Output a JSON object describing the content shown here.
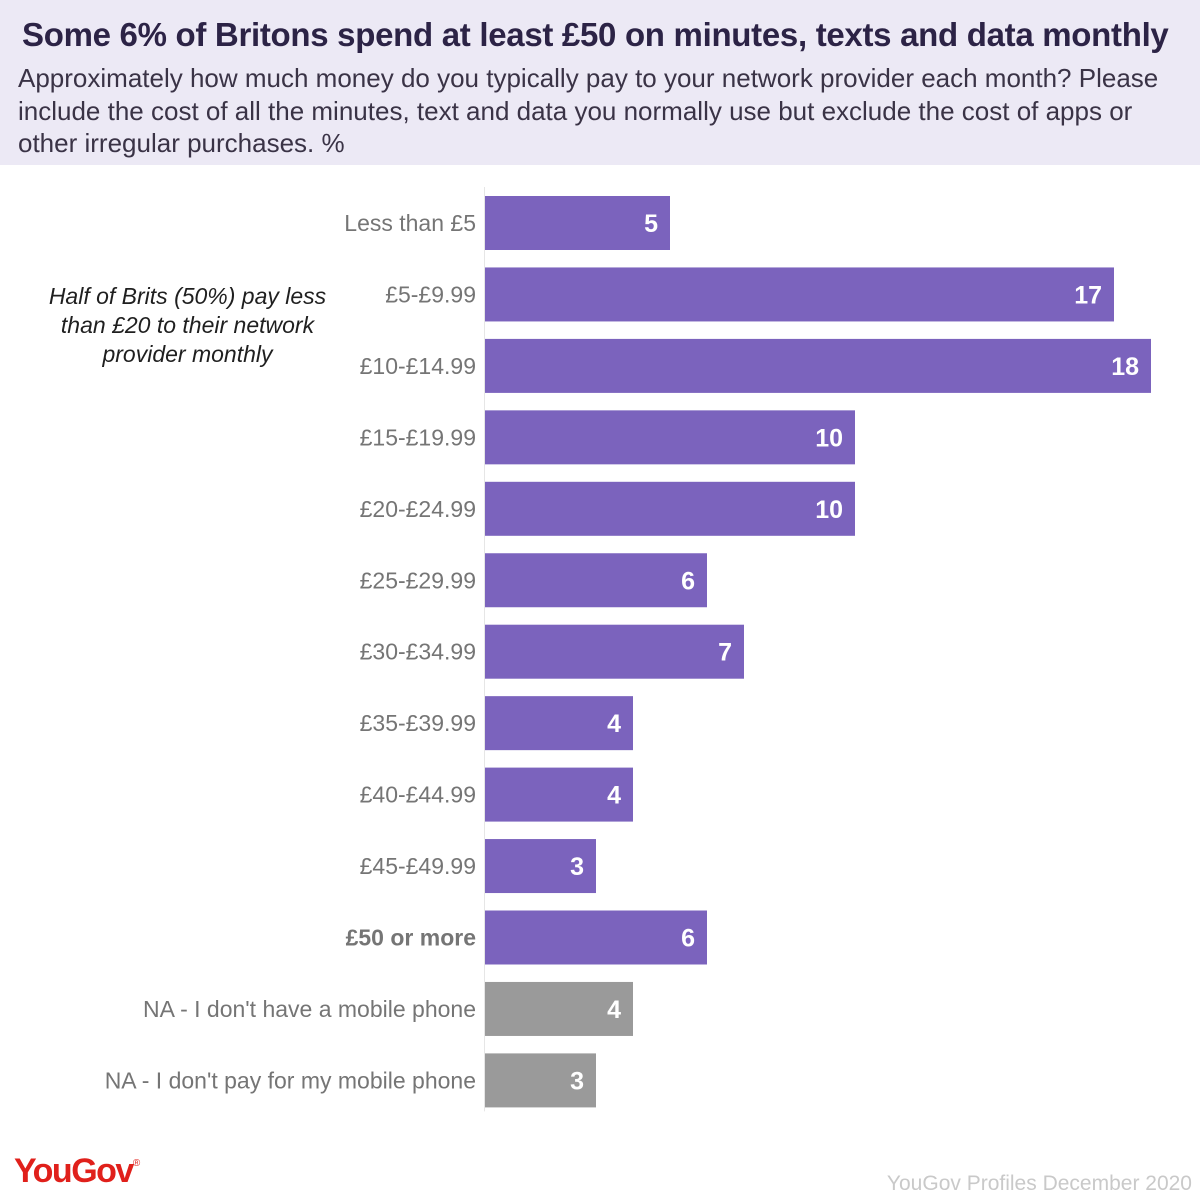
{
  "header": {
    "title": "Some 6% of Britons spend at least £50 on minutes, texts and data monthly",
    "subtitle": "Approximately how much money do you typically pay to your network provider each month? Please include the cost of all the minutes, text and data you normally use but exclude the cost of apps or other irregular purchases. %"
  },
  "annotation": "Half of Brits (50%) pay less than £20 to their network provider monthly",
  "footer": {
    "logo": "YouGov",
    "logo_mark": "®",
    "source": "YouGov Profiles December 2020"
  },
  "chart_data": {
    "type": "bar",
    "orientation": "horizontal",
    "title": "",
    "xlabel": "",
    "ylabel": "",
    "xlim": [
      0,
      18
    ],
    "grid": false,
    "legend": "none",
    "categories": [
      "Less than £5",
      "£5-£9.99",
      "£10-£14.99",
      "£15-£19.99",
      "£20-£24.99",
      "£25-£29.99",
      "£30-£34.99",
      "£35-£39.99",
      "£40-£44.99",
      "£45-£49.99",
      "£50 or more",
      "NA - I don't have a mobile phone",
      "NA - I don't pay for my mobile phone"
    ],
    "values": [
      5,
      17,
      18,
      10,
      10,
      6,
      7,
      4,
      4,
      3,
      6,
      4,
      3
    ],
    "bold_categories": [
      "£50 or more"
    ],
    "bar_colors": [
      "#7b63bd",
      "#7b63bd",
      "#7b63bd",
      "#7b63bd",
      "#7b63bd",
      "#7b63bd",
      "#7b63bd",
      "#7b63bd",
      "#7b63bd",
      "#7b63bd",
      "#7b63bd",
      "#9a9a9a",
      "#9a9a9a"
    ]
  },
  "colors": {
    "purple_bar": "#7b63bd",
    "grey_bar": "#9a9a9a",
    "header_bg": "#ece9f5",
    "logo": "#e0201b",
    "label_text": "#757575",
    "value_text": "#ffffff"
  }
}
